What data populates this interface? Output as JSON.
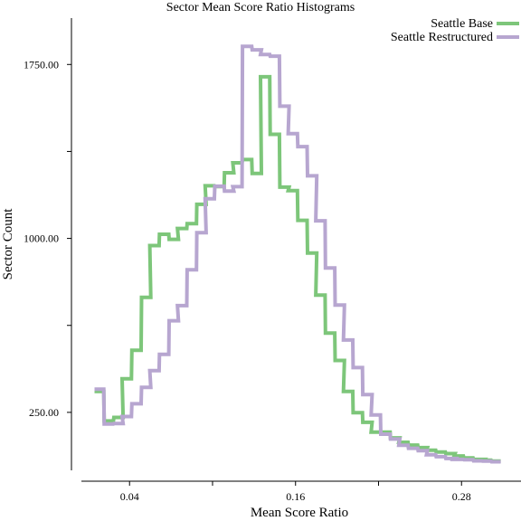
{
  "chart_data": {
    "type": "line",
    "step": true,
    "title": "Sector Mean Score Ratio Histograms",
    "xlabel": "Mean Score Ratio",
    "ylabel": "Sector Count",
    "xlim": [
      -0.002,
      0.323
    ],
    "ylim": [
      0,
      1950
    ],
    "x_ticks": [
      {
        "value": 0.04,
        "label": "0.04"
      },
      {
        "value": 0.1,
        "label": ""
      },
      {
        "value": 0.16,
        "label": "0.16"
      },
      {
        "value": 0.22,
        "label": ""
      },
      {
        "value": 0.28,
        "label": "0.28"
      }
    ],
    "y_ticks": [
      {
        "value": 250,
        "label": "250.00"
      },
      {
        "value": 625,
        "label": ""
      },
      {
        "value": 1000,
        "label": "1000.00"
      },
      {
        "value": 1375,
        "label": ""
      },
      {
        "value": 1750,
        "label": "1750.00"
      }
    ],
    "bin_width": 0.0067,
    "legend_position": "top-right",
    "grid": false,
    "series": [
      {
        "name": "Seattle Base",
        "color": "#7dc67a",
        "x": [
          0.018,
          0.025,
          0.032,
          0.038,
          0.045,
          0.052,
          0.058,
          0.065,
          0.072,
          0.078,
          0.085,
          0.092,
          0.098,
          0.105,
          0.112,
          0.118,
          0.125,
          0.132,
          0.138,
          0.145,
          0.152,
          0.158,
          0.165,
          0.172,
          0.178,
          0.185,
          0.192,
          0.198,
          0.205,
          0.212,
          0.218,
          0.225,
          0.232,
          0.238,
          0.245,
          0.252,
          0.258,
          0.265,
          0.272,
          0.278,
          0.285,
          0.292,
          0.298,
          0.305
        ],
        "values": [
          340,
          213,
          228,
          395,
          518,
          746,
          969,
          1018,
          996,
          1043,
          1064,
          1147,
          1227,
          1224,
          1283,
          1326,
          1340,
          1280,
          1697,
          1449,
          1221,
          1206,
          1078,
          937,
          756,
          592,
          474,
          340,
          249,
          207,
          165,
          165,
          140,
          121,
          109,
          98,
          87,
          79,
          72,
          62,
          54,
          47,
          44,
          40
        ]
      },
      {
        "name": "Seattle Restructured",
        "color": "#b7a6d0",
        "x": [
          0.018,
          0.025,
          0.032,
          0.038,
          0.045,
          0.052,
          0.058,
          0.065,
          0.072,
          0.078,
          0.085,
          0.092,
          0.098,
          0.105,
          0.112,
          0.118,
          0.125,
          0.132,
          0.138,
          0.145,
          0.152,
          0.158,
          0.165,
          0.172,
          0.178,
          0.185,
          0.192,
          0.198,
          0.205,
          0.212,
          0.218,
          0.225,
          0.232,
          0.238,
          0.245,
          0.252,
          0.258,
          0.265,
          0.272,
          0.278,
          0.285,
          0.292,
          0.298,
          0.305
        ],
        "values": [
          350,
          200,
          202,
          232,
          287,
          358,
          430,
          500,
          645,
          710,
          865,
          1025,
          1171,
          1225,
          1204,
          1223,
          1828,
          1813,
          1793,
          1786,
          1570,
          1452,
          1396,
          1270,
          1076,
          873,
          713,
          562,
          443,
          327,
          239,
          156,
          135,
          108,
          95,
          85,
          67,
          59,
          51,
          47,
          46,
          41,
          40,
          37
        ]
      }
    ]
  }
}
